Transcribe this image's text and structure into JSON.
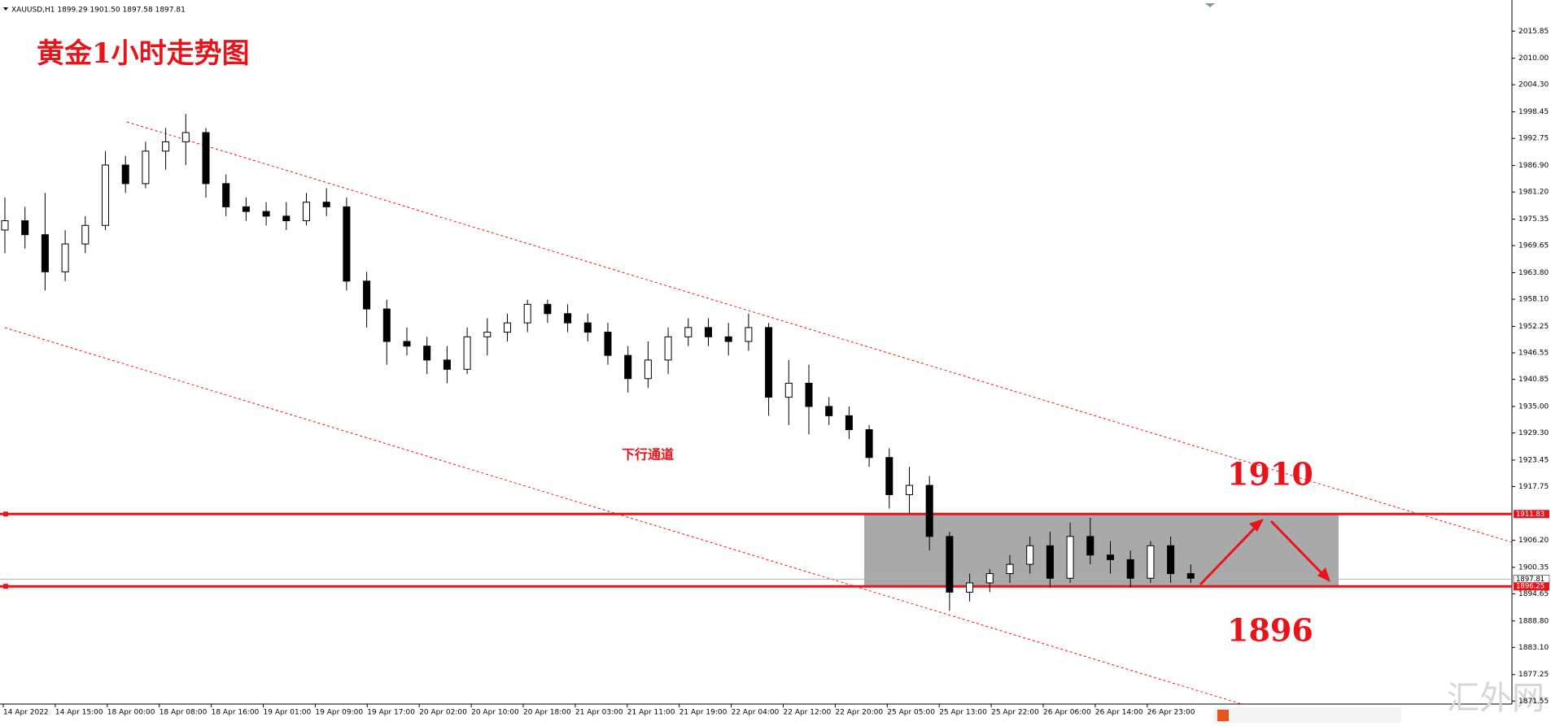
{
  "chart_data": {
    "type": "candlestick",
    "header": "XAUUSD,H1  1899.29 1901.50 1897.58 1897.81",
    "title": "黄金1小时走势图",
    "channel_label": "下行通道",
    "annotations": [
      "1910",
      "1896"
    ],
    "watermark": "汇外网",
    "categories": [
      "14 Apr 2022",
      "14 Apr 15:00",
      "18 Apr 00:00",
      "18 Apr 08:00",
      "18 Apr 16:00",
      "19 Apr 01:00",
      "19 Apr 09:00",
      "19 Apr 17:00",
      "20 Apr 02:00",
      "20 Apr 10:00",
      "20 Apr 18:00",
      "21 Apr 03:00",
      "21 Apr 11:00",
      "21 Apr 19:00",
      "22 Apr 04:00",
      "22 Apr 12:00",
      "22 Apr 20:00",
      "25 Apr 05:00",
      "25 Apr 13:00",
      "25 Apr 22:00",
      "26 Apr 06:00",
      "26 Apr 14:00",
      "26 Apr 23:00"
    ],
    "open": [
      1973,
      1975,
      1972,
      1964,
      1970,
      1974,
      1987,
      1983,
      1990,
      1992,
      1994,
      1983,
      1978,
      1977,
      1976,
      1975,
      1979,
      1978,
      1962,
      1956,
      1949,
      1948,
      1945,
      1943,
      1950,
      1951,
      1953,
      1957,
      1955,
      1953,
      1951,
      1946,
      1941,
      1945,
      1950,
      1952,
      1950,
      1949,
      1952,
      1937,
      1940,
      1935,
      1933,
      1930,
      1924,
      1916,
      1918,
      1907,
      1895,
      1897,
      1899,
      1901,
      1905,
      1898,
      1907,
      1903,
      1902,
      1898,
      1905,
      1899
    ],
    "high": [
      1980,
      1978,
      1981,
      1973,
      1976,
      1990,
      1989,
      1992,
      1995,
      1998,
      1995,
      1985,
      1980,
      1979,
      1979,
      1981,
      1982,
      1980,
      1964,
      1958,
      1952,
      1950,
      1948,
      1952,
      1954,
      1955,
      1958,
      1958,
      1957,
      1955,
      1953,
      1948,
      1949,
      1952,
      1954,
      1954,
      1953,
      1955,
      1953,
      1945,
      1944,
      1937,
      1935,
      1931,
      1926,
      1922,
      1920,
      1908,
      1899,
      1900,
      1903,
      1907,
      1908,
      1910,
      1911,
      1906,
      1904,
      1906,
      1907,
      1901
    ],
    "low": [
      1968,
      1969,
      1960,
      1962,
      1968,
      1973,
      1981,
      1982,
      1986,
      1987,
      1980,
      1976,
      1975,
      1974,
      1973,
      1974,
      1976,
      1960,
      1952,
      1944,
      1946,
      1942,
      1940,
      1942,
      1946,
      1949,
      1951,
      1953,
      1951,
      1949,
      1944,
      1938,
      1939,
      1942,
      1948,
      1948,
      1946,
      1947,
      1933,
      1931,
      1929,
      1931,
      1928,
      1922,
      1913,
      1912,
      1904,
      1891,
      1893,
      1895,
      1897,
      1899,
      1896,
      1897,
      1901,
      1899,
      1896,
      1897,
      1897,
      1897
    ],
    "close": [
      1975,
      1972,
      1964,
      1970,
      1974,
      1987,
      1983,
      1990,
      1992,
      1994,
      1983,
      1978,
      1977,
      1976,
      1975,
      1979,
      1978,
      1962,
      1956,
      1949,
      1948,
      1945,
      1943,
      1950,
      1951,
      1953,
      1957,
      1955,
      1953,
      1951,
      1946,
      1941,
      1945,
      1950,
      1952,
      1950,
      1949,
      1952,
      1937,
      1940,
      1935,
      1933,
      1930,
      1924,
      1916,
      1918,
      1907,
      1895,
      1897,
      1899,
      1901,
      1905,
      1898,
      1907,
      1903,
      1902,
      1898,
      1905,
      1899,
      1898
    ],
    "levels": {
      "resistance": 1911.83,
      "last": 1897.81,
      "support": 1896.25
    },
    "ylim": [
      1870.9,
      2020.8
    ],
    "yticks": [
      2015.85,
      {
        "value": 2010,
        "label": "2010.00"
      },
      {
        "value": 2004.3,
        "label": "2004.30"
      },
      1998.45,
      1992.75,
      {
        "value": 1986.9,
        "label": "1986.90"
      },
      {
        "value": 1981.2,
        "label": "1981.20"
      },
      1975.35,
      1969.65,
      {
        "value": 1963.8,
        "label": "1963.80"
      },
      {
        "value": 1958.1,
        "label": "1958.10"
      },
      1952.25,
      1946.55,
      1940.85,
      {
        "value": 1935,
        "label": "1935.00"
      },
      {
        "value": 1929.3,
        "label": "1929.30"
      },
      1923.45,
      1917.75,
      {
        "value": 1906.2,
        "label": "1906.20"
      },
      1900.35,
      1894.65,
      {
        "value": 1888.8,
        "label": "1888.80"
      },
      {
        "value": 1883.1,
        "label": "1883.10"
      },
      1877.25,
      1871.55
    ],
    "grid": false
  }
}
